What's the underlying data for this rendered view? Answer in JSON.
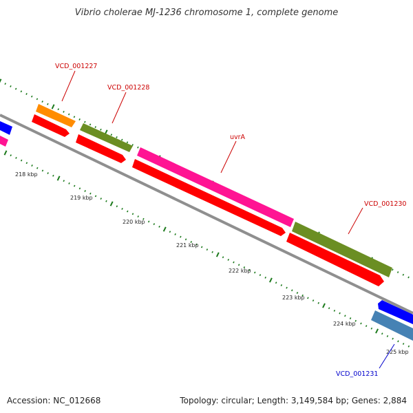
{
  "title": "Vibrio cholerae MJ-1236 chromosome 1, complete genome",
  "footer": {
    "accession": "Accession: NC_012668",
    "summary": "Topology: circular; Length: 3,149,584 bp; Genes: 2,884"
  },
  "colors": {
    "backbone": "#8f8f8f",
    "tick": "#1c7a1c",
    "label_red": "#cc0000",
    "label_blue": "#0000cc",
    "cds": "#ff0000",
    "orange": "#ff8c00",
    "olive": "#6b8e23",
    "magenta": "#ff1493",
    "blue": "#0000ff",
    "steel": "#4682b4"
  },
  "ticks": [
    {
      "label": "218 kbp"
    },
    {
      "label": "219 kbp"
    },
    {
      "label": "220 kbp"
    },
    {
      "label": "221 kbp"
    },
    {
      "label": "222 kbp"
    },
    {
      "label": "223 kbp"
    },
    {
      "label": "224 kbp"
    },
    {
      "label": "225 kbp"
    }
  ],
  "features": [
    {
      "name": "blue-feature-left",
      "color": "blue"
    },
    {
      "name": "magenta-feature-left",
      "color": "magenta"
    },
    {
      "name": "vcd-001227-gene",
      "color": "orange",
      "label": "VCD_001227"
    },
    {
      "name": "cds-1",
      "color": "cds"
    },
    {
      "name": "vcd-001228-gene",
      "color": "olive",
      "label": "VCD_001228"
    },
    {
      "name": "cds-2",
      "color": "cds"
    },
    {
      "name": "uvra-gene",
      "color": "magenta",
      "label": "uvrA"
    },
    {
      "name": "cds-3",
      "color": "cds"
    },
    {
      "name": "vcd-001230-gene",
      "color": "olive",
      "label": "VCD_001230"
    },
    {
      "name": "cds-4",
      "color": "cds"
    },
    {
      "name": "blue-feature-right",
      "color": "blue"
    },
    {
      "name": "vcd-001231-gene",
      "color": "steel",
      "label": "VCD_001231"
    }
  ]
}
